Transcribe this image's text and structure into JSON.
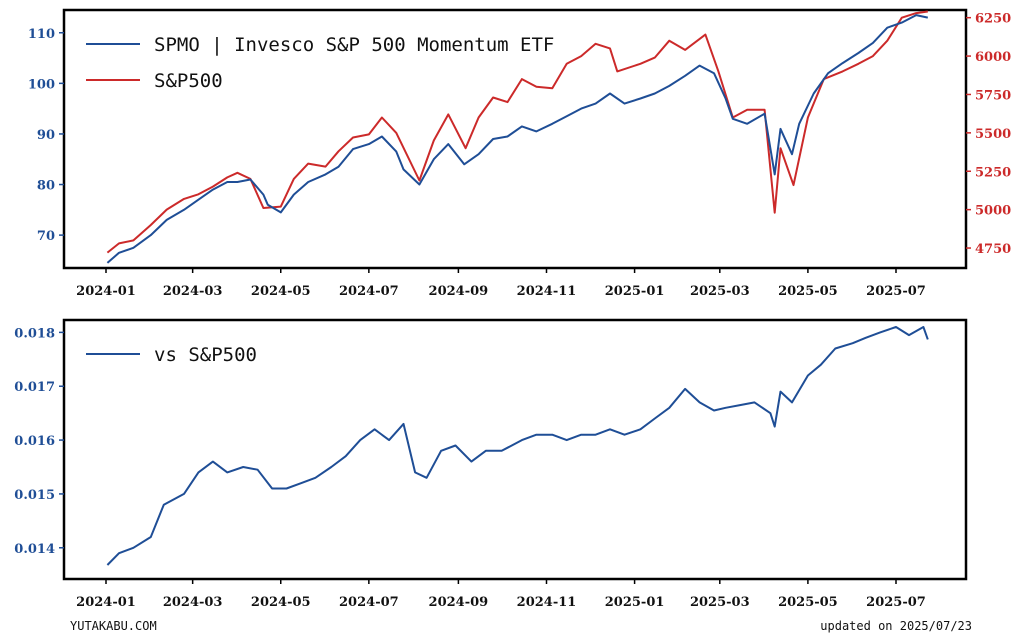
{
  "chart_data": [
    {
      "type": "line",
      "title": "",
      "x_ticks": [
        "2024-01",
        "2024-03",
        "2024-05",
        "2024-07",
        "2024-09",
        "2024-11",
        "2025-01",
        "2025-03",
        "2025-05",
        "2025-07"
      ],
      "y_left_ticks": [
        "70",
        "80",
        "90",
        "100",
        "110"
      ],
      "y_right_ticks": [
        "4750",
        "5000",
        "5250",
        "5500",
        "5750",
        "6000",
        "6250"
      ],
      "ylim_left": [
        63.5,
        114.5
      ],
      "ylim_right": [
        4620,
        6300
      ],
      "legend_placement": "top-left",
      "series": [
        {
          "name": "SPMO | Invesco S&P 500 Momentum ETF",
          "axis": "left",
          "color": "#1f4e96",
          "points": [
            [
              "2024-01-02",
              64.5
            ],
            [
              "2024-01-10",
              66.5
            ],
            [
              "2024-01-20",
              67.5
            ],
            [
              "2024-02-01",
              70
            ],
            [
              "2024-02-12",
              73
            ],
            [
              "2024-02-24",
              75
            ],
            [
              "2024-03-05",
              77
            ],
            [
              "2024-03-15",
              79
            ],
            [
              "2024-03-25",
              80.5
            ],
            [
              "2024-04-01",
              80.5
            ],
            [
              "2024-04-10",
              81
            ],
            [
              "2024-04-19",
              78
            ],
            [
              "2024-04-22",
              76
            ],
            [
              "2024-05-01",
              74.5
            ],
            [
              "2024-05-10",
              78
            ],
            [
              "2024-05-20",
              80.5
            ],
            [
              "2024-06-01",
              82
            ],
            [
              "2024-06-10",
              83.5
            ],
            [
              "2024-06-20",
              87
            ],
            [
              "2024-07-01",
              88
            ],
            [
              "2024-07-10",
              89.5
            ],
            [
              "2024-07-20",
              86.5
            ],
            [
              "2024-07-25",
              83
            ],
            [
              "2024-08-05",
              80
            ],
            [
              "2024-08-15",
              85
            ],
            [
              "2024-08-25",
              88
            ],
            [
              "2024-09-05",
              84
            ],
            [
              "2024-09-15",
              86
            ],
            [
              "2024-09-25",
              89
            ],
            [
              "2024-10-05",
              89.5
            ],
            [
              "2024-10-15",
              91.5
            ],
            [
              "2024-10-25",
              90.5
            ],
            [
              "2024-11-05",
              92
            ],
            [
              "2024-11-15",
              93.5
            ],
            [
              "2024-11-25",
              95
            ],
            [
              "2024-12-05",
              96
            ],
            [
              "2024-12-15",
              98
            ],
            [
              "2024-12-25",
              96
            ],
            [
              "2025-01-05",
              97
            ],
            [
              "2025-01-15",
              98
            ],
            [
              "2025-01-25",
              99.5
            ],
            [
              "2025-02-05",
              101.5
            ],
            [
              "2025-02-15",
              103.5
            ],
            [
              "2025-02-25",
              102
            ],
            [
              "2025-03-05",
              97
            ],
            [
              "2025-03-10",
              93
            ],
            [
              "2025-03-20",
              92
            ],
            [
              "2025-04-01",
              94
            ],
            [
              "2025-04-08",
              82
            ],
            [
              "2025-04-12",
              91
            ],
            [
              "2025-04-20",
              86
            ],
            [
              "2025-04-25",
              92
            ],
            [
              "2025-05-05",
              98
            ],
            [
              "2025-05-15",
              102
            ],
            [
              "2025-05-25",
              104
            ],
            [
              "2025-06-05",
              106
            ],
            [
              "2025-06-15",
              108
            ],
            [
              "2025-06-25",
              111
            ],
            [
              "2025-07-05",
              112
            ],
            [
              "2025-07-15",
              113.5
            ],
            [
              "2025-07-23",
              113
            ]
          ]
        },
        {
          "name": "S&P500",
          "axis": "right",
          "color": "#cc2a2a",
          "points": [
            [
              "2024-01-02",
              4720
            ],
            [
              "2024-01-10",
              4780
            ],
            [
              "2024-01-20",
              4800
            ],
            [
              "2024-02-01",
              4900
            ],
            [
              "2024-02-12",
              5000
            ],
            [
              "2024-02-24",
              5070
            ],
            [
              "2024-03-05",
              5100
            ],
            [
              "2024-03-15",
              5150
            ],
            [
              "2024-03-25",
              5210
            ],
            [
              "2024-04-01",
              5240
            ],
            [
              "2024-04-10",
              5200
            ],
            [
              "2024-04-19",
              5011
            ],
            [
              "2024-05-01",
              5020
            ],
            [
              "2024-05-10",
              5200
            ],
            [
              "2024-05-20",
              5300
            ],
            [
              "2024-06-01",
              5280
            ],
            [
              "2024-06-10",
              5380
            ],
            [
              "2024-06-20",
              5470
            ],
            [
              "2024-07-01",
              5490
            ],
            [
              "2024-07-10",
              5600
            ],
            [
              "2024-07-20",
              5500
            ],
            [
              "2024-08-05",
              5190
            ],
            [
              "2024-08-15",
              5450
            ],
            [
              "2024-08-25",
              5620
            ],
            [
              "2024-09-06",
              5400
            ],
            [
              "2024-09-15",
              5600
            ],
            [
              "2024-09-25",
              5730
            ],
            [
              "2024-10-05",
              5700
            ],
            [
              "2024-10-15",
              5850
            ],
            [
              "2024-10-25",
              5800
            ],
            [
              "2024-11-05",
              5790
            ],
            [
              "2024-11-15",
              5950
            ],
            [
              "2024-11-25",
              6000
            ],
            [
              "2024-12-05",
              6080
            ],
            [
              "2024-12-15",
              6050
            ],
            [
              "2024-12-20",
              5900
            ],
            [
              "2025-01-05",
              5950
            ],
            [
              "2025-01-15",
              5990
            ],
            [
              "2025-01-25",
              6100
            ],
            [
              "2025-02-05",
              6040
            ],
            [
              "2025-02-19",
              6140
            ],
            [
              "2025-02-28",
              5900
            ],
            [
              "2025-03-10",
              5600
            ],
            [
              "2025-03-20",
              5650
            ],
            [
              "2025-04-01",
              5650
            ],
            [
              "2025-04-08",
              4980
            ],
            [
              "2025-04-12",
              5400
            ],
            [
              "2025-04-21",
              5160
            ],
            [
              "2025-05-01",
              5600
            ],
            [
              "2025-05-12",
              5850
            ],
            [
              "2025-05-25",
              5900
            ],
            [
              "2025-06-05",
              5950
            ],
            [
              "2025-06-15",
              6000
            ],
            [
              "2025-06-25",
              6100
            ],
            [
              "2025-07-05",
              6250
            ],
            [
              "2025-07-15",
              6280
            ],
            [
              "2025-07-23",
              6290
            ]
          ]
        }
      ]
    },
    {
      "type": "line",
      "title": "",
      "x_ticks": [
        "2024-01",
        "2024-03",
        "2024-05",
        "2024-07",
        "2024-09",
        "2024-11",
        "2025-01",
        "2025-03",
        "2025-05",
        "2025-07"
      ],
      "y_ticks": [
        "0.014",
        "0.015",
        "0.016",
        "0.017",
        "0.018"
      ],
      "ylim": [
        0.01342,
        0.01823
      ],
      "legend_placement": "top-left",
      "series": [
        {
          "name": "vs S&P500",
          "color": "#1f4e96",
          "points": [
            [
              "2024-01-02",
              0.01368
            ],
            [
              "2024-01-10",
              0.0139
            ],
            [
              "2024-01-20",
              0.014
            ],
            [
              "2024-02-01",
              0.0142
            ],
            [
              "2024-02-10",
              0.0148
            ],
            [
              "2024-02-24",
              0.015
            ],
            [
              "2024-03-05",
              0.0154
            ],
            [
              "2024-03-15",
              0.0156
            ],
            [
              "2024-03-25",
              0.0154
            ],
            [
              "2024-04-05",
              0.0155
            ],
            [
              "2024-04-15",
              0.01545
            ],
            [
              "2024-04-25",
              0.0151
            ],
            [
              "2024-05-05",
              0.0151
            ],
            [
              "2024-05-15",
              0.0152
            ],
            [
              "2024-05-25",
              0.0153
            ],
            [
              "2024-06-05",
              0.0155
            ],
            [
              "2024-06-15",
              0.0157
            ],
            [
              "2024-06-25",
              0.016
            ],
            [
              "2024-07-05",
              0.0162
            ],
            [
              "2024-07-15",
              0.016
            ],
            [
              "2024-07-25",
              0.0163
            ],
            [
              "2024-08-02",
              0.0154
            ],
            [
              "2024-08-10",
              0.0153
            ],
            [
              "2024-08-20",
              0.0158
            ],
            [
              "2024-08-30",
              0.0159
            ],
            [
              "2024-09-10",
              0.0156
            ],
            [
              "2024-09-20",
              0.0158
            ],
            [
              "2024-10-01",
              0.0158
            ],
            [
              "2024-10-15",
              0.016
            ],
            [
              "2024-10-25",
              0.0161
            ],
            [
              "2024-11-05",
              0.0161
            ],
            [
              "2024-11-15",
              0.016
            ],
            [
              "2024-11-25",
              0.0161
            ],
            [
              "2024-12-05",
              0.0161
            ],
            [
              "2024-12-15",
              0.0162
            ],
            [
              "2024-12-25",
              0.0161
            ],
            [
              "2025-01-05",
              0.0162
            ],
            [
              "2025-01-15",
              0.0164
            ],
            [
              "2025-01-25",
              0.0166
            ],
            [
              "2025-02-05",
              0.01695
            ],
            [
              "2025-02-15",
              0.0167
            ],
            [
              "2025-02-25",
              0.01655
            ],
            [
              "2025-03-05",
              0.0166
            ],
            [
              "2025-03-15",
              0.01665
            ],
            [
              "2025-03-25",
              0.0167
            ],
            [
              "2025-04-05",
              0.0165
            ],
            [
              "2025-04-08",
              0.01625
            ],
            [
              "2025-04-12",
              0.0169
            ],
            [
              "2025-04-20",
              0.0167
            ],
            [
              "2025-05-01",
              0.0172
            ],
            [
              "2025-05-10",
              0.0174
            ],
            [
              "2025-05-20",
              0.0177
            ],
            [
              "2025-06-01",
              0.0178
            ],
            [
              "2025-06-10",
              0.0179
            ],
            [
              "2025-06-20",
              0.018
            ],
            [
              "2025-07-01",
              0.0181
            ],
            [
              "2025-07-10",
              0.01795
            ],
            [
              "2025-07-20",
              0.0181
            ],
            [
              "2025-07-23",
              0.01787
            ]
          ]
        }
      ]
    }
  ],
  "footer": {
    "site": "YUTAKABU.COM",
    "updated": "updated on 2025/07/23"
  }
}
